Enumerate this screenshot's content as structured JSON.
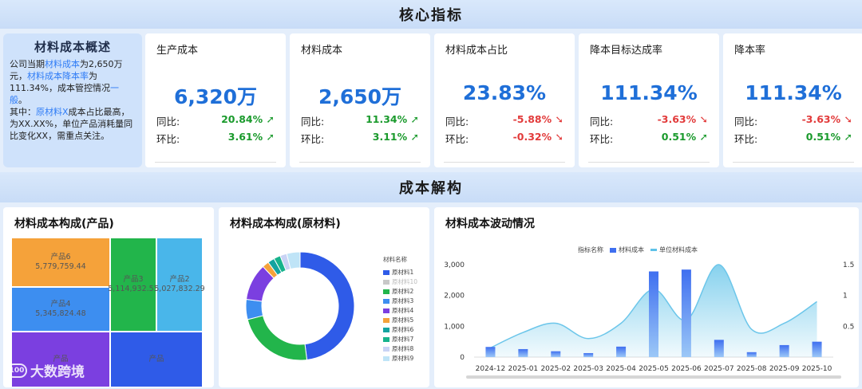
{
  "header": {
    "title": "核心指标"
  },
  "section2": {
    "title": "成本解构"
  },
  "summary": {
    "title": "材料成本概述",
    "p1_a": "公司当期",
    "p1_b": "材料成本",
    "p1_c": "为2,650万元，",
    "p1_d": "材料成本降本率",
    "p1_e": "为111.34%，成本管控情况",
    "p1_f": "一般",
    "p1_g": "。",
    "p2_a": "其中：",
    "p2_b": "原材料X",
    "p2_c": "成本占比最高，为XX.XX%，单位产品消耗量同比变化XX，需重点关注。"
  },
  "kpis": [
    {
      "title": "生产成本",
      "value": "6,320万",
      "yoy_label": "同比:",
      "yoy": "20.84%",
      "yoy_dir": "up",
      "mom_label": "环比:",
      "mom": "3.61%",
      "mom_dir": "up"
    },
    {
      "title": "材料成本",
      "value": "2,650万",
      "yoy_label": "同比:",
      "yoy": "11.34%",
      "yoy_dir": "up",
      "mom_label": "环比:",
      "mom": "3.11%",
      "mom_dir": "up"
    },
    {
      "title": "材料成本占比",
      "value": "23.83%",
      "yoy_label": "同比:",
      "yoy": "-5.88%",
      "yoy_dir": "down",
      "mom_label": "环比:",
      "mom": "-0.32%",
      "mom_dir": "down"
    },
    {
      "title": "降本目标达成率",
      "value": "111.34%",
      "yoy_label": "同比:",
      "yoy": "-3.63%",
      "yoy_dir": "down",
      "mom_label": "环比:",
      "mom": "0.51%",
      "mom_dir": "up"
    },
    {
      "title": "降本率",
      "value": "111.34%",
      "yoy_label": "同比:",
      "yoy": "-3.63%",
      "yoy_dir": "down",
      "mom_label": "环比:",
      "mom": "0.51%",
      "mom_dir": "up"
    }
  ],
  "treemap": {
    "title": "材料成本构成(产品)",
    "items": [
      {
        "name": "产品6",
        "value": "5,779,759.44",
        "color": "#f5a23a"
      },
      {
        "name": "产品4",
        "value": "5,345,824.48",
        "color": "#3d8ef0"
      },
      {
        "name": "产品3",
        "value": "5,114,932.53",
        "color": "#22b54b"
      },
      {
        "name": "产品2",
        "value": "5,027,832.29",
        "color": "#49b6ea"
      },
      {
        "name": "产品",
        "value": "",
        "color": "#7b3fe0"
      },
      {
        "name": "产品",
        "value": "",
        "color": "#2f5be8"
      }
    ]
  },
  "donut": {
    "title": "材料成本构成(原材料)",
    "legend_title": "材料名称",
    "items": [
      {
        "name": "原材料1",
        "value": 48,
        "color": "#2f5be8"
      },
      {
        "name": "原材料10",
        "value": 0,
        "color": "#c8c8c8"
      },
      {
        "name": "原材料2",
        "value": 23,
        "color": "#22b54b"
      },
      {
        "name": "原材料3",
        "value": 6,
        "color": "#3d8ef0"
      },
      {
        "name": "原材料4",
        "value": 11,
        "color": "#7b3fe0"
      },
      {
        "name": "原材料5",
        "value": 2,
        "color": "#f5a23a"
      },
      {
        "name": "原材料6",
        "value": 2,
        "color": "#14a3a0"
      },
      {
        "name": "原材料7",
        "value": 2,
        "color": "#17b38c"
      },
      {
        "name": "原材料8",
        "value": 2,
        "color": "#c9d3f5"
      },
      {
        "name": "原材料9",
        "value": 4,
        "color": "#bfe4f7"
      }
    ]
  },
  "chart_data": {
    "type": "bar",
    "title": "材料成本波动情况",
    "legend_title": "指标名称",
    "categories": [
      "2024-12",
      "2025-01",
      "2025-02",
      "2025-03",
      "2025-04",
      "2025-05",
      "2025-06",
      "2025-07",
      "2025-08",
      "2025-09",
      "2025-10"
    ],
    "series": [
      {
        "name": "材料成本",
        "type": "bar",
        "axis": "left",
        "color": "#3f6ff0",
        "values": [
          330,
          260,
          190,
          130,
          340,
          2780,
          2840,
          560,
          160,
          390,
          500
        ]
      },
      {
        "name": "单位材料成本",
        "type": "area",
        "axis": "right",
        "color": "#5ec2e8",
        "values": [
          0.15,
          0.4,
          0.55,
          0.3,
          0.55,
          1.1,
          0.6,
          1.5,
          0.45,
          0.55,
          0.9
        ]
      }
    ],
    "ylim_left": [
      0,
      3000
    ],
    "yticks_left": [
      "0",
      "1,000",
      "2,000",
      "3,000"
    ],
    "ylim_right": [
      0,
      1.5
    ],
    "yticks_right": [
      "0.5",
      "1",
      "1.5"
    ]
  },
  "watermark": {
    "text": "大数跨境"
  }
}
